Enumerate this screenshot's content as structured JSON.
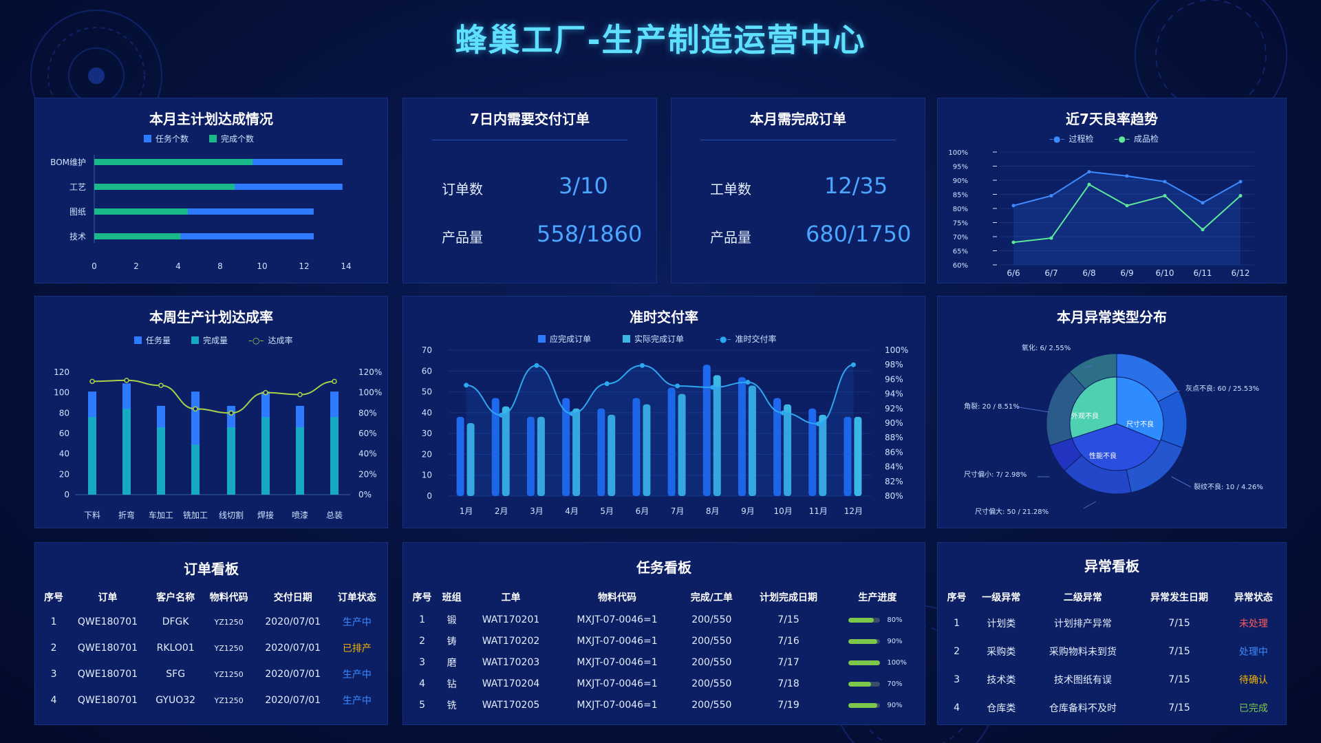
{
  "title": "蜂巢工厂-生产制造运营中心",
  "colors": {
    "blue": "#2f7bff",
    "green": "#19b98a",
    "teal": "#17a8c6",
    "line_yellow": "#a8d24c",
    "accent": "#5fe0ff"
  },
  "master_plan": {
    "title": "本月主计划达成情况",
    "legend": [
      "任务个数",
      "完成个数"
    ],
    "categories": [
      "BOM维护",
      "工艺",
      "图纸",
      "技术"
    ],
    "xticks": [
      "0",
      "2",
      "4",
      "8",
      "10",
      "12",
      "14"
    ]
  },
  "delivery7": {
    "title": "7日内需要交付订单",
    "row1_label": "订单数",
    "row1_value": "3/10",
    "row2_label": "产品量",
    "row2_value": "558/1860"
  },
  "month_orders": {
    "title": "本月需完成订单",
    "row1_label": "工单数",
    "row1_value": "12/35",
    "row2_label": "产品量",
    "row2_value": "680/1750"
  },
  "yield_trend": {
    "title": "近7天良率趋势",
    "legend": [
      "过程检",
      "成品检"
    ]
  },
  "weekly_plan": {
    "title": "本周生产计划达成率",
    "legend": [
      "任务量",
      "完成量",
      "达成率"
    ]
  },
  "ontime": {
    "title": "准时交付率",
    "legend": [
      "应完成订单",
      "实际完成订单",
      "准时交付率"
    ]
  },
  "anomaly": {
    "title": "本月异常类型分布",
    "labels": [
      "氧化: 6/ 2.55%",
      "灰点不良: 60 / 25.53%",
      "裂纹不良: 10 / 4.26%",
      "尺寸偏大: 50 / 21.28%",
      "尺寸偏小: 7/ 2.98%",
      "角裂: 20 / 8.51%"
    ],
    "inner": [
      "性能不良",
      "外观不良",
      "尺寸不良"
    ]
  },
  "chart_data": [
    {
      "type": "bar",
      "orientation": "horizontal",
      "title": "本月主计划达成情况",
      "categories": [
        "BOM维护",
        "工艺",
        "图纸",
        "技术"
      ],
      "series": [
        {
          "name": "任务个数",
          "values": [
            13.8,
            13.8,
            12.2,
            12.2
          ]
        },
        {
          "name": "完成个数",
          "values": [
            8.8,
            7.8,
            5.2,
            4.8
          ]
        }
      ],
      "xlim": [
        0,
        14
      ]
    },
    {
      "type": "line",
      "title": "近7天良率趋势",
      "x": [
        "6/6",
        "6/7",
        "6/8",
        "6/9",
        "6/10",
        "6/11",
        "6/12"
      ],
      "series": [
        {
          "name": "过程检",
          "values": [
            81,
            84.5,
            93,
            91.5,
            89.5,
            82,
            89.5
          ]
        },
        {
          "name": "成品检",
          "values": [
            68,
            69.5,
            88.5,
            81,
            84.5,
            72.5,
            84.5
          ]
        }
      ],
      "yticks": [
        "100%",
        "95%",
        "90%",
        "85%",
        "80%",
        "75%",
        "70%",
        "65%",
        "60%"
      ],
      "ylim": [
        60,
        100
      ]
    },
    {
      "type": "bar",
      "title": "本周生产计划达成率",
      "categories": [
        "下料",
        "折弯",
        "车加工",
        "铣加工",
        "线切割",
        "焊接",
        "喷漆",
        "总装"
      ],
      "series": [
        {
          "name": "任务量",
          "values": [
            101,
            109,
            87,
            101,
            87,
            101,
            87,
            101
          ]
        },
        {
          "name": "完成量",
          "values": [
            76,
            84,
            66,
            49,
            66,
            76,
            66,
            76
          ]
        },
        {
          "name": "达成率",
          "values": [
            111,
            112,
            107,
            84,
            80,
            100,
            98,
            111
          ]
        }
      ],
      "yticks_left": [
        "120",
        "100",
        "80",
        "60",
        "40",
        "20",
        "0"
      ],
      "yticks_right": [
        "120%",
        "100%",
        "80%",
        "60%",
        "40%",
        "20%",
        "0%"
      ]
    },
    {
      "type": "bar",
      "title": "准时交付率",
      "categories": [
        "1月",
        "2月",
        "3月",
        "4月",
        "5月",
        "6月",
        "7月",
        "8月",
        "9月",
        "10月",
        "11月",
        "12月"
      ],
      "series": [
        {
          "name": "应完成订单",
          "values": [
            38,
            47,
            38,
            47,
            42,
            47,
            52,
            63,
            57,
            47,
            42,
            38
          ]
        },
        {
          "name": "实际完成订单",
          "values": [
            35,
            43,
            38,
            42,
            39,
            44,
            49,
            58,
            53,
            44,
            39,
            38
          ]
        },
        {
          "name": "准时交付率",
          "values": [
            95.2,
            91.1,
            97.9,
            91.3,
            95.4,
            97.9,
            95.1,
            94.9,
            95.6,
            91.4,
            89.9,
            98.0
          ]
        }
      ],
      "yticks_left": [
        "70",
        "60",
        "50",
        "40",
        "30",
        "20",
        "10",
        "0"
      ],
      "yticks_right": [
        "100%",
        "98%",
        "96%",
        "94%",
        "92%",
        "90%",
        "88%",
        "86%",
        "84%",
        "82%",
        "80%"
      ]
    },
    {
      "type": "pie",
      "title": "本月异常类型分布",
      "slices": [
        {
          "label": "氧化",
          "value": 6,
          "percent": 2.55
        },
        {
          "label": "灰点不良",
          "value": 60,
          "percent": 25.53
        },
        {
          "label": "裂纹不良",
          "value": 10,
          "percent": 4.26
        },
        {
          "label": "尺寸偏大",
          "value": 50,
          "percent": 21.28
        },
        {
          "label": "尺寸偏小",
          "value": 7,
          "percent": 2.98
        },
        {
          "label": "角裂",
          "value": 20,
          "percent": 8.51
        }
      ],
      "inner": [
        "性能不良",
        "外观不良",
        "尺寸不良"
      ]
    }
  ],
  "order_board": {
    "title": "订单看板",
    "headers": [
      "序号",
      "订单",
      "客户名称",
      "物料代码",
      "交付日期",
      "订单状态"
    ],
    "rows": [
      [
        "1",
        "QWE180701",
        "DFGK",
        "YZ1250",
        "2020/07/01",
        "生产中"
      ],
      [
        "2",
        "QWE180701",
        "RKLO01",
        "YZ1250",
        "2020/07/01",
        "已排产"
      ],
      [
        "3",
        "QWE180701",
        "SFG",
        "YZ1250",
        "2020/07/01",
        "生产中"
      ],
      [
        "4",
        "QWE180701",
        "GYUO32",
        "YZ1250",
        "2020/07/01",
        "生产中"
      ]
    ],
    "status_colors": [
      "#3b8bff",
      "#f0b400",
      "#3b8bff",
      "#3b8bff"
    ]
  },
  "task_board": {
    "title": "任务看板",
    "headers": [
      "序号",
      "班组",
      "工单",
      "物料代码",
      "完成/工单",
      "计划完成日期",
      "生产进度"
    ],
    "rows": [
      [
        "1",
        "锻",
        "WAT170201",
        "MXJT-07-0046=1",
        "200/550",
        "7/15",
        "80%"
      ],
      [
        "2",
        "铸",
        "WAT170202",
        "MXJT-07-0046=1",
        "200/550",
        "7/16",
        "90%"
      ],
      [
        "3",
        "磨",
        "WAT170203",
        "MXJT-07-0046=1",
        "200/550",
        "7/17",
        "100%"
      ],
      [
        "4",
        "钻",
        "WAT170204",
        "MXJT-07-0046=1",
        "200/550",
        "7/18",
        "70%"
      ],
      [
        "5",
        "铣",
        "WAT170205",
        "MXJT-07-0046=1",
        "200/550",
        "7/19",
        "90%"
      ]
    ],
    "progress": [
      0.8,
      0.9,
      1.0,
      0.7,
      0.9
    ]
  },
  "anomaly_board": {
    "title": "异常看板",
    "headers": [
      "序号",
      "一级异常",
      "二级异常",
      "异常发生日期",
      "异常状态"
    ],
    "rows": [
      [
        "1",
        "计划类",
        "计划排产异常",
        "7/15",
        "未处理"
      ],
      [
        "2",
        "采购类",
        "采购物料未到货",
        "7/15",
        "处理中"
      ],
      [
        "3",
        "技术类",
        "技术图纸有误",
        "7/15",
        "待确认"
      ],
      [
        "4",
        "仓库类",
        "仓库备料不及时",
        "7/15",
        "已完成"
      ]
    ],
    "status_colors": [
      "#ff5a5a",
      "#3b8bff",
      "#f0b400",
      "#7dc74a"
    ]
  }
}
